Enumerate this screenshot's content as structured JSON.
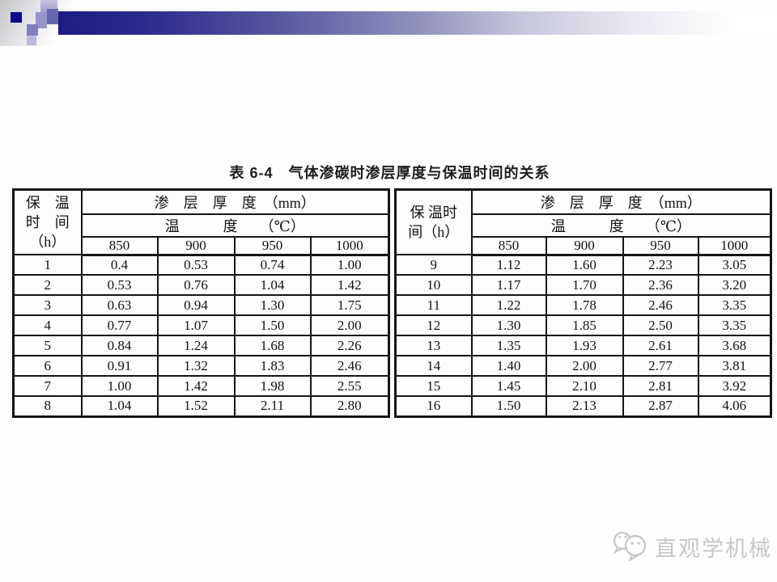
{
  "title": "表 6-4　气体渗碳时渗层厚度与保温时间的关系",
  "colors": {
    "header_bar_start": "#1c1c85",
    "header_bar_end": "#ffffff",
    "pixel_navy": "#0b0b86",
    "table_border": "#151515",
    "watermark_gray": "#c7c7c7"
  },
  "tables": [
    {
      "side": "left",
      "time_header": "保　温\n时　间\n（h）",
      "depth_header": "渗　层　厚　度　（mm）",
      "temp_header": "温　　　度　　（℃）",
      "temp_cols": [
        "850",
        "900",
        "950",
        "1000"
      ],
      "rows": [
        [
          "1",
          "0.4",
          "0.53",
          "0.74",
          "1.00"
        ],
        [
          "2",
          "0.53",
          "0.76",
          "1.04",
          "1.42"
        ],
        [
          "3",
          "0.63",
          "0.94",
          "1.30",
          "1.75"
        ],
        [
          "4",
          "0.77",
          "1.07",
          "1.50",
          "2.00"
        ],
        [
          "5",
          "0.84",
          "1.24",
          "1.68",
          "2.26"
        ],
        [
          "6",
          "0.91",
          "1.32",
          "1.83",
          "2.46"
        ],
        [
          "7",
          "1.00",
          "1.42",
          "1.98",
          "2.55"
        ],
        [
          "8",
          "1.04",
          "1.52",
          "2.11",
          "2.80"
        ]
      ]
    },
    {
      "side": "right",
      "time_header": "保 温时\n间（h）",
      "depth_header": "渗　层　厚　度　（mm）",
      "temp_header": "温　　　度　　（℃）",
      "temp_cols": [
        "850",
        "900",
        "950",
        "1000"
      ],
      "rows": [
        [
          "9",
          "1.12",
          "1.60",
          "2.23",
          "3.05"
        ],
        [
          "10",
          "1.17",
          "1.70",
          "2.36",
          "3.20"
        ],
        [
          "11",
          "1.22",
          "1.78",
          "2.46",
          "3.35"
        ],
        [
          "12",
          "1.30",
          "1.85",
          "2.50",
          "3.35"
        ],
        [
          "13",
          "1.35",
          "1.93",
          "2.61",
          "3.68"
        ],
        [
          "14",
          "1.40",
          "2.00",
          "2.77",
          "3.81"
        ],
        [
          "15",
          "1.45",
          "2.10",
          "2.81",
          "3.92"
        ],
        [
          "16",
          "1.50",
          "2.13",
          "2.87",
          "4.06"
        ]
      ]
    }
  ],
  "watermark": {
    "logo_icon": "wechat-bubbles-icon",
    "text": "直观学机械"
  }
}
